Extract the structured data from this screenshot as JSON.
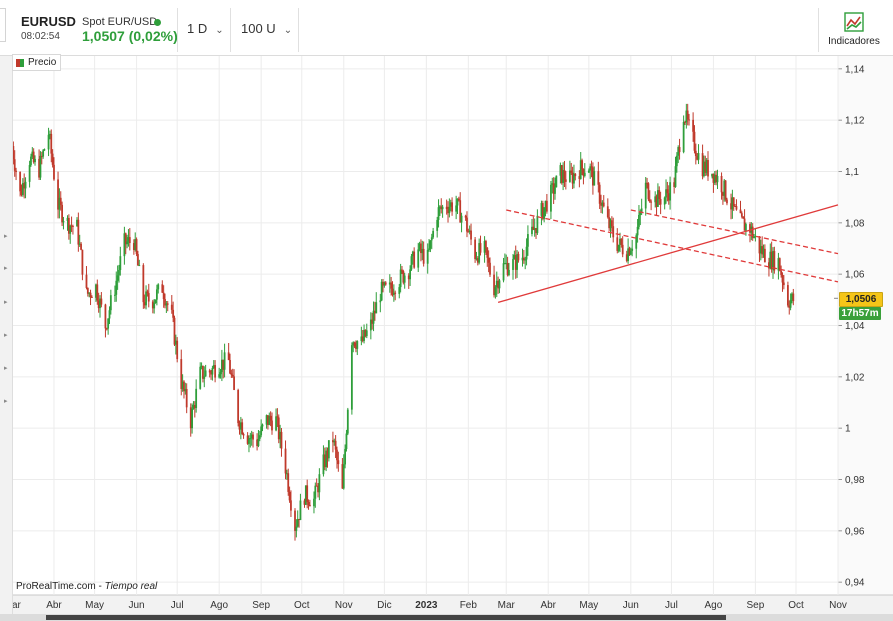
{
  "header": {
    "symbol": "EURUSD",
    "description": "Spot EUR/USD",
    "time": "08:02:54",
    "price_change": "1,0507 (0,02%)",
    "timeframe": "1 D",
    "units": "100 U",
    "indicators_label": "Indicadores"
  },
  "legend": {
    "label": "Precio"
  },
  "watermark": {
    "brand": "ProRealTime.com",
    "separator": "-",
    "mode": "Tiempo real"
  },
  "badges": {
    "last_price": "1,0506",
    "countdown": "17h57m"
  },
  "colors": {
    "up": "#2e9e3a",
    "down": "#c0392b",
    "trendline": "#e03a3a",
    "badge_price": "#f5c518",
    "badge_timer": "#3aa03a"
  },
  "chart_data": {
    "type": "candlestick",
    "title": "",
    "ylim": [
      0.935,
      1.145
    ],
    "y_ticks": [
      "1,14",
      "1,12",
      "1,1",
      "1,08",
      "1,06",
      "1,04",
      "1,02",
      "1",
      "0,98",
      "0,96",
      "0,94"
    ],
    "y_tick_values": [
      1.14,
      1.12,
      1.1,
      1.08,
      1.06,
      1.04,
      1.02,
      1.0,
      0.98,
      0.96,
      0.94
    ],
    "x_labels": [
      "ar",
      "Abr",
      "May",
      "Jun",
      "Jul",
      "Ago",
      "Sep",
      "Oct",
      "Nov",
      "Dic",
      "2023",
      "Feb",
      "Mar",
      "Abr",
      "May",
      "Jun",
      "Jul",
      "Ago",
      "Sep",
      "Oct",
      "Nov"
    ],
    "x_label_dates": [
      "2022-03-01",
      "2022-04-01",
      "2022-05-01",
      "2022-06-01",
      "2022-07-01",
      "2022-08-01",
      "2022-09-01",
      "2022-10-01",
      "2022-11-01",
      "2022-12-01",
      "2023-01-01",
      "2023-02-01",
      "2023-03-01",
      "2023-04-01",
      "2023-05-01",
      "2023-06-01",
      "2023-07-01",
      "2023-08-01",
      "2023-09-01",
      "2023-10-01",
      "2023-11-01"
    ],
    "x_range": [
      "2022-03-01",
      "2023-11-01"
    ],
    "close_series": [
      [
        "2022-03-01",
        1.11
      ],
      [
        "2022-03-07",
        1.091
      ],
      [
        "2022-03-14",
        1.105
      ],
      [
        "2022-03-21",
        1.101
      ],
      [
        "2022-03-28",
        1.115
      ],
      [
        "2022-04-04",
        1.087
      ],
      [
        "2022-04-11",
        1.08
      ],
      [
        "2022-04-18",
        1.078
      ],
      [
        "2022-04-25",
        1.052
      ],
      [
        "2022-05-02",
        1.055
      ],
      [
        "2022-05-09",
        1.04
      ],
      [
        "2022-05-16",
        1.055
      ],
      [
        "2022-05-23",
        1.072
      ],
      [
        "2022-05-30",
        1.073
      ],
      [
        "2022-06-06",
        1.05
      ],
      [
        "2022-06-13",
        1.05
      ],
      [
        "2022-06-20",
        1.055
      ],
      [
        "2022-06-27",
        1.043
      ],
      [
        "2022-07-04",
        1.018
      ],
      [
        "2022-07-11",
        1.003
      ],
      [
        "2022-07-18",
        1.021
      ],
      [
        "2022-07-25",
        1.022
      ],
      [
        "2022-08-01",
        1.025
      ],
      [
        "2022-08-08",
        1.026
      ],
      [
        "2022-08-15",
        1.004
      ],
      [
        "2022-08-22",
        0.997
      ],
      [
        "2022-08-29",
        0.995
      ],
      [
        "2022-09-05",
        1.003
      ],
      [
        "2022-09-12",
        1.003
      ],
      [
        "2022-09-19",
        0.985
      ],
      [
        "2022-09-26",
        0.962
      ],
      [
        "2022-10-03",
        0.974
      ],
      [
        "2022-10-10",
        0.972
      ],
      [
        "2022-10-17",
        0.986
      ],
      [
        "2022-10-24",
        0.996
      ],
      [
        "2022-10-31",
        0.975
      ],
      [
        "2022-11-07",
        1.035
      ],
      [
        "2022-11-14",
        1.033
      ],
      [
        "2022-11-21",
        1.04
      ],
      [
        "2022-11-28",
        1.053
      ],
      [
        "2022-12-05",
        1.054
      ],
      [
        "2022-12-12",
        1.058
      ],
      [
        "2022-12-19",
        1.062
      ],
      [
        "2022-12-26",
        1.069
      ],
      [
        "2023-01-02",
        1.066
      ],
      [
        "2023-01-09",
        1.084
      ],
      [
        "2023-01-16",
        1.087
      ],
      [
        "2023-01-23",
        1.087
      ],
      [
        "2023-01-30",
        1.08
      ],
      [
        "2023-02-06",
        1.068
      ],
      [
        "2023-02-13",
        1.069
      ],
      [
        "2023-02-20",
        1.055
      ],
      [
        "2023-02-27",
        1.063
      ],
      [
        "2023-03-06",
        1.064
      ],
      [
        "2023-03-13",
        1.067
      ],
      [
        "2023-03-20",
        1.076
      ],
      [
        "2023-03-27",
        1.084
      ],
      [
        "2023-04-03",
        1.091
      ],
      [
        "2023-04-10",
        1.099
      ],
      [
        "2023-04-17",
        1.097
      ],
      [
        "2023-04-24",
        1.101
      ],
      [
        "2023-05-01",
        1.102
      ],
      [
        "2023-05-08",
        1.092
      ],
      [
        "2023-05-15",
        1.08
      ],
      [
        "2023-05-22",
        1.072
      ],
      [
        "2023-05-29",
        1.069
      ],
      [
        "2023-06-05",
        1.075
      ],
      [
        "2023-06-12",
        1.094
      ],
      [
        "2023-06-19",
        1.089
      ],
      [
        "2023-06-26",
        1.09
      ],
      [
        "2023-07-03",
        1.096
      ],
      [
        "2023-07-10",
        1.123
      ],
      [
        "2023-07-17",
        1.112
      ],
      [
        "2023-07-24",
        1.102
      ],
      [
        "2023-07-31",
        1.1
      ],
      [
        "2023-08-07",
        1.095
      ],
      [
        "2023-08-14",
        1.087
      ],
      [
        "2023-08-21",
        1.08
      ],
      [
        "2023-08-28",
        1.078
      ],
      [
        "2023-09-04",
        1.07
      ],
      [
        "2023-09-11",
        1.066
      ],
      [
        "2023-09-18",
        1.065
      ],
      [
        "2023-09-25",
        1.05
      ]
    ],
    "trendlines": [
      {
        "style": "solid",
        "from": [
          "2023-02-23",
          1.049
        ],
        "to": [
          "2023-11-01",
          1.087
        ]
      },
      {
        "style": "dashed",
        "from": [
          "2023-03-01",
          1.085
        ],
        "to": [
          "2023-11-01",
          1.057
        ]
      },
      {
        "style": "dashed",
        "from": [
          "2023-06-01",
          1.085
        ],
        "to": [
          "2023-11-01",
          1.068
        ]
      }
    ],
    "last_price": 1.0506,
    "grid": true,
    "y_axis_side": "right"
  }
}
